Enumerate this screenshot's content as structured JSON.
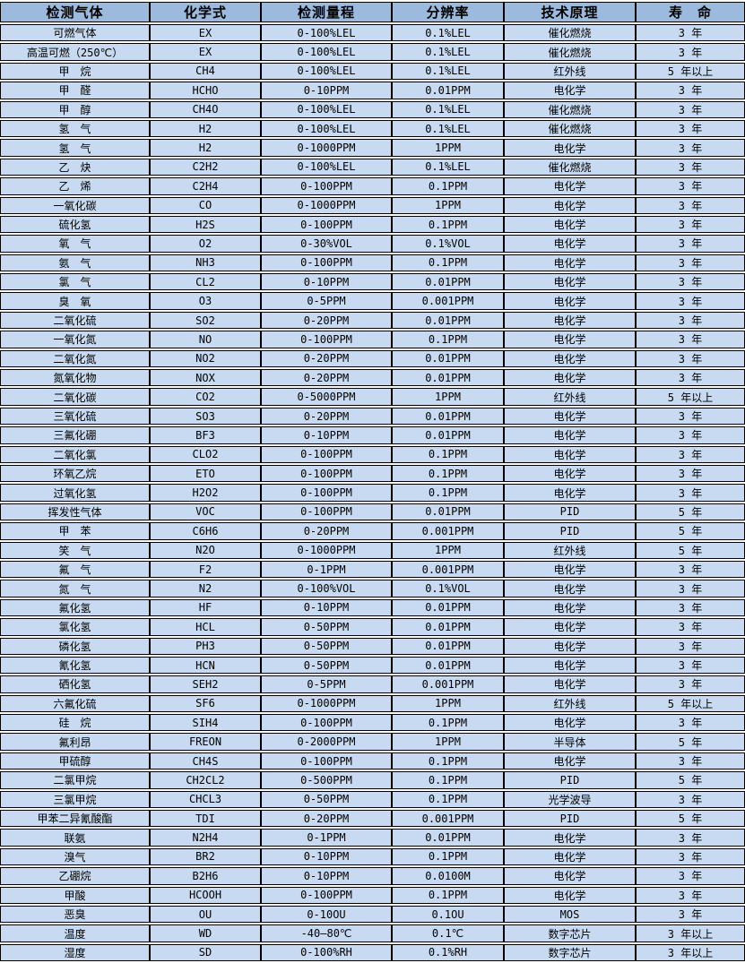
{
  "colors": {
    "header_bg": "#9bbade",
    "row_bg": "#c7daf1",
    "gap_bg": "#ffffff",
    "border": "#000000",
    "text": "#000000"
  },
  "table": {
    "columns": [
      "检测气体",
      "化学式",
      "检测量程",
      "分辨率",
      "技术原理",
      "寿　命"
    ],
    "rows": [
      [
        "可燃气体",
        "EX",
        "0-100%LEL",
        "0.1%LEL",
        "催化燃烧",
        "3 年"
      ],
      [
        "高温可燃（250℃）",
        "EX",
        "0-100%LEL",
        "0.1%LEL",
        "催化燃烧",
        "3 年"
      ],
      [
        "甲　烷",
        "CH4",
        "0-100%LEL",
        "0.1%LEL",
        "红外线",
        "5 年以上"
      ],
      [
        "甲　醛",
        "HCHO",
        "0-10PPM",
        "0.01PPM",
        "电化学",
        "3 年"
      ],
      [
        "甲　醇",
        "CH4O",
        "0-100%LEL",
        "0.1%LEL",
        "催化燃烧",
        "3 年"
      ],
      [
        "氢　气",
        "H2",
        "0-100%LEL",
        "0.1%LEL",
        "催化燃烧",
        "3 年"
      ],
      [
        "氢　气",
        "H2",
        "0-1000PPM",
        "1PPM",
        "电化学",
        "3 年"
      ],
      [
        "乙　炔",
        "C2H2",
        "0-100%LEL",
        "0.1%LEL",
        "催化燃烧",
        "3 年"
      ],
      [
        "乙　烯",
        "C2H4",
        "0-100PPM",
        "0.1PPM",
        "电化学",
        "3 年"
      ],
      [
        "一氧化碳",
        "CO",
        "0-1000PPM",
        "1PPM",
        "电化学",
        "3 年"
      ],
      [
        "硫化氢",
        "H2S",
        "0-100PPM",
        "0.1PPM",
        "电化学",
        "3 年"
      ],
      [
        "氧　气",
        "O2",
        "0-30%VOL",
        "0.1%VOL",
        "电化学",
        "3 年"
      ],
      [
        "氨　气",
        "NH3",
        "0-100PPM",
        "0.1PPM",
        "电化学",
        "3 年"
      ],
      [
        "氯　气",
        "CL2",
        "0-10PPM",
        "0.01PPM",
        "电化学",
        "3 年"
      ],
      [
        "臭　氧",
        "O3",
        "0-5PPM",
        "0.001PPM",
        "电化学",
        "3 年"
      ],
      [
        "二氧化硫",
        "SO2",
        "0-20PPM",
        "0.01PPM",
        "电化学",
        "3 年"
      ],
      [
        "一氧化氮",
        "NO",
        "0-100PPM",
        "0.1PPM",
        "电化学",
        "3 年"
      ],
      [
        "二氧化氮",
        "NO2",
        "0-20PPM",
        "0.01PPM",
        "电化学",
        "3 年"
      ],
      [
        "氮氧化物",
        "NOX",
        "0-20PPM",
        "0.01PPM",
        "电化学",
        "3 年"
      ],
      [
        "二氧化碳",
        "CO2",
        "0-5000PPM",
        "1PPM",
        "红外线",
        "5 年以上"
      ],
      [
        "三氧化硫",
        "SO3",
        "0-20PPM",
        "0.01PPM",
        "电化学",
        "3 年"
      ],
      [
        "三氟化硼",
        "BF3",
        "0-10PPM",
        "0.01PPM",
        "电化学",
        "3 年"
      ],
      [
        "二氧化氯",
        "CLO2",
        "0-100PPM",
        "0.1PPM",
        "电化学",
        "3 年"
      ],
      [
        "环氧乙烷",
        "ETO",
        "0-100PPM",
        "0.1PPM",
        "电化学",
        "3 年"
      ],
      [
        "过氧化氢",
        "H2O2",
        "0-100PPM",
        "0.1PPM",
        "电化学",
        "3 年"
      ],
      [
        "挥发性气体",
        "VOC",
        "0-100PPM",
        "0.01PPM",
        "PID",
        "5 年"
      ],
      [
        "甲　苯",
        "C6H6",
        "0-20PPM",
        "0.001PPM",
        "PID",
        "5 年"
      ],
      [
        "笑　气",
        "N2O",
        "0-1000PPM",
        "1PPM",
        "红外线",
        "5 年"
      ],
      [
        "氟　气",
        "F2",
        "0-1PPM",
        "0.001PPM",
        "电化学",
        "3 年"
      ],
      [
        "氮　气",
        "N2",
        "0-100%VOL",
        "0.1%VOL",
        "电化学",
        "3 年"
      ],
      [
        "氟化氢",
        "HF",
        "0-10PPM",
        "0.01PPM",
        "电化学",
        "3 年"
      ],
      [
        "氯化氢",
        "HCL",
        "0-50PPM",
        "0.01PPM",
        "电化学",
        "3 年"
      ],
      [
        "磷化氢",
        "PH3",
        "0-50PPM",
        "0.01PPM",
        "电化学",
        "3 年"
      ],
      [
        "氰化氢",
        "HCN",
        "0-50PPM",
        "0.01PPM",
        "电化学",
        "3 年"
      ],
      [
        "硒化氢",
        "SEH2",
        "0-5PPM",
        "0.001PPM",
        "电化学",
        "3 年"
      ],
      [
        "六氟化硫",
        "SF6",
        "0-1000PPM",
        "1PPM",
        "红外线",
        "5 年以上"
      ],
      [
        "硅　烷",
        "SIH4",
        "0-100PPM",
        "0.1PPM",
        "电化学",
        "3 年"
      ],
      [
        "氟利昂",
        "FREON",
        "0-2000PPM",
        "1PPM",
        "半导体",
        "5 年"
      ],
      [
        "甲硫醇",
        "CH4S",
        "0-100PPM",
        "0.1PPM",
        "电化学",
        "3 年"
      ],
      [
        "二氯甲烷",
        "CH2CL2",
        "0-500PPM",
        "0.1PPM",
        "PID",
        "5 年"
      ],
      [
        "三氯甲烷",
        "CHCL3",
        "0-50PPM",
        "0.1PPM",
        "光学波导",
        "3 年"
      ],
      [
        "甲苯二异氰酸酯",
        "TDI",
        "0-20PPM",
        "0.001PPM",
        "PID",
        "5 年"
      ],
      [
        "联氨",
        "N2H4",
        "0-1PPM",
        "0.01PPM",
        "电化学",
        "3 年"
      ],
      [
        "溴气",
        "BR2",
        "0-10PPM",
        "0.1PPM",
        "电化学",
        "3 年"
      ],
      [
        "乙硼烷",
        "B2H6",
        "0-10PPM",
        "0.0100M",
        "电化学",
        "3 年"
      ],
      [
        "甲酸",
        "HCOOH",
        "0-100PPM",
        "0.1PPM",
        "电化学",
        "3 年"
      ],
      [
        "恶臭",
        "OU",
        "0-10OU",
        "0.1OU",
        "MOS",
        "3 年"
      ],
      [
        "温度",
        "WD",
        "-40—80℃",
        "0.1℃",
        "数字芯片",
        "3 年以上"
      ],
      [
        "湿度",
        "SD",
        "0-100%RH",
        "0.1%RH",
        "数字芯片",
        "3 年以上"
      ]
    ]
  }
}
